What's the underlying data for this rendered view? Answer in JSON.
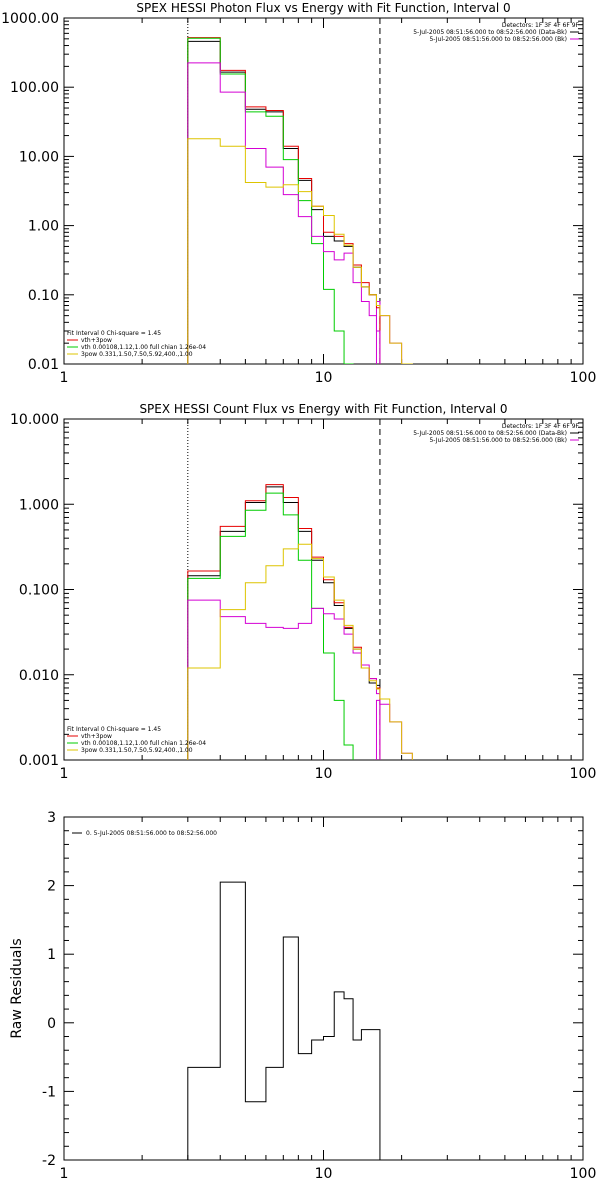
{
  "colors": {
    "black": "#000000",
    "red": "#e60000",
    "green": "#00cc00",
    "magenta": "#d400d4",
    "yellow": "#ddc400"
  },
  "chart_data": [
    {
      "type": "line",
      "title": "SPEX HESSI Photon Flux vs Energy with Fit Function, Interval 0",
      "xscale": "log",
      "yscale": "log",
      "xlim": [
        1,
        100
      ],
      "ylim": [
        0.01,
        1000
      ],
      "xticks": [
        "1",
        "10",
        "100"
      ],
      "yticks": [
        "0.01",
        "0.10",
        "1.00",
        "10.00",
        "100.00",
        "1000.00"
      ],
      "vlines": {
        "dotted": 3,
        "dashed": 16.5
      },
      "annotation_right": [
        "Detectors: 1F 3F 4F 6F 9F",
        "5-Jul-2005 08:51:56.000 to 08:52:56.000 (Data-Bk)",
        "5-Jul-2005 08:51:56.000 to 08:52:56.000 (Bk)"
      ],
      "annotation_left": [
        "Fit Interval 0   Chi-square = 1.45",
        "vth+3pow",
        "vth 0.00108,1.12,1.00  full chian 1.26e-04",
        "3pow 0.331,1.50,7.50,5.92,400.,1.00"
      ],
      "edges": [
        3,
        4,
        5,
        6,
        7,
        8,
        9,
        10,
        11,
        12,
        13,
        14,
        15,
        16,
        16.5,
        18,
        20,
        22
      ],
      "series": [
        {
          "key": "data_bk",
          "values": [
            460,
            165,
            48,
            44,
            13,
            4.5,
            1.7,
            0.7,
            0.6,
            0.5,
            0.25,
            0.13,
            0.1,
            0.07
          ]
        },
        {
          "key": "bk",
          "values": [
            null,
            null,
            null,
            null,
            null,
            null,
            null,
            null,
            null,
            null,
            null,
            null,
            null,
            0.08,
            0.05,
            0.02,
            0.01
          ]
        },
        {
          "key": "total",
          "values": [
            520,
            175,
            52,
            46,
            14,
            4.8,
            1.9,
            0.8,
            0.7,
            0.55,
            0.27,
            0.15,
            0.1,
            0.065
          ]
        },
        {
          "key": "thermal",
          "values": [
            510,
            155,
            44,
            38,
            9,
            2.3,
            0.55,
            0.12,
            0.03,
            0.01
          ]
        },
        {
          "key": "pow",
          "values": [
            225,
            85,
            13,
            7,
            2.8,
            1.35,
            0.7,
            0.42,
            0.32,
            0.4,
            0.15,
            0.08,
            0.05,
            0.03
          ]
        },
        {
          "key": "pow3",
          "values": [
            18,
            14,
            4.2,
            3.6,
            3.9,
            3.1,
            1.9,
            1.4,
            0.75,
            0.52,
            0.25,
            0.13,
            0.1,
            0.07,
            0.05,
            0.02,
            0.01
          ]
        }
      ]
    },
    {
      "type": "line",
      "title": "SPEX HESSI Count Flux vs Energy with Fit Function, Interval 0",
      "xscale": "log",
      "yscale": "log",
      "xlim": [
        1,
        100
      ],
      "ylim": [
        0.001,
        10
      ],
      "xticks": [
        "1",
        "10",
        "100"
      ],
      "yticks": [
        "0.001",
        "0.010",
        "0.100",
        "1.000",
        "10.000"
      ],
      "vlines": {
        "dotted": 3,
        "dashed": 16.5
      },
      "annotation_right": [
        "Detectors: 1F 3F 4F 6F 9F",
        "5-Jul-2005 08:51:56.000 to 08:52:56.000 (Data-Bk)",
        "5-Jul-2005 08:51:56.000 to 08:52:56.000 (Bk)"
      ],
      "annotation_left": [
        "Fit Interval 0   Chi-square = 1.45",
        "vth+3pow",
        "vth 0.00108,1.12,1.00  full chian 1.26e-04",
        "3pow 0.331,1.50,7.50,5.92,400.,1.00"
      ],
      "edges": [
        3,
        4,
        5,
        6,
        7,
        8,
        9,
        10,
        11,
        12,
        13,
        14,
        15,
        16,
        16.5,
        18,
        20,
        22
      ],
      "series": [
        {
          "key": "data_bk",
          "values": [
            0.145,
            0.48,
            1.05,
            1.6,
            1.05,
            0.48,
            0.22,
            0.12,
            0.065,
            0.035,
            0.02,
            0.012,
            0.008,
            0.0075
          ]
        },
        {
          "key": "bk",
          "values": [
            null,
            null,
            null,
            null,
            null,
            null,
            null,
            null,
            null,
            null,
            null,
            null,
            null,
            0.005,
            0.0045,
            0.0028,
            0.0012
          ]
        },
        {
          "key": "total",
          "values": [
            0.165,
            0.55,
            1.1,
            1.7,
            1.2,
            0.52,
            0.24,
            0.13,
            0.07,
            0.036,
            0.021,
            0.012,
            0.009,
            0.007
          ]
        },
        {
          "key": "thermal",
          "values": [
            0.135,
            0.42,
            0.85,
            1.35,
            0.75,
            0.22,
            0.06,
            0.018,
            0.005,
            0.0015
          ]
        },
        {
          "key": "pow",
          "values": [
            0.075,
            0.048,
            0.04,
            0.036,
            0.035,
            0.04,
            0.06,
            0.052,
            0.045,
            0.03,
            0.018,
            0.013,
            0.009,
            0.006
          ]
        },
        {
          "key": "pow3",
          "values": [
            0.012,
            0.058,
            0.12,
            0.19,
            0.3,
            0.34,
            0.23,
            0.14,
            0.075,
            0.038,
            0.02,
            0.012,
            0.0085,
            0.0068,
            0.0052,
            0.0028,
            0.0012
          ]
        }
      ]
    },
    {
      "type": "line",
      "title": "",
      "xscale": "log",
      "yscale": "linear",
      "xlim": [
        1,
        100
      ],
      "ylim": [
        -2,
        3
      ],
      "xticks": [
        "1",
        "10",
        "100"
      ],
      "yticks": [
        "-2",
        "-1",
        "0",
        "1",
        "2",
        "3"
      ],
      "ylabel": "Raw Residuals",
      "legend": "0. 5-Jul-2005 08:51:56.000 to 08:52:56.000",
      "edges": [
        3,
        4,
        5,
        6,
        7,
        8,
        9,
        10,
        11,
        12,
        13,
        14,
        15,
        16.5
      ],
      "series": [
        {
          "key": "residuals",
          "values": [
            -0.65,
            2.05,
            -1.15,
            -0.65,
            1.25,
            -0.45,
            -0.25,
            -0.2,
            0.45,
            0.35,
            -0.25,
            -0.1,
            -0.1
          ]
        }
      ]
    }
  ]
}
